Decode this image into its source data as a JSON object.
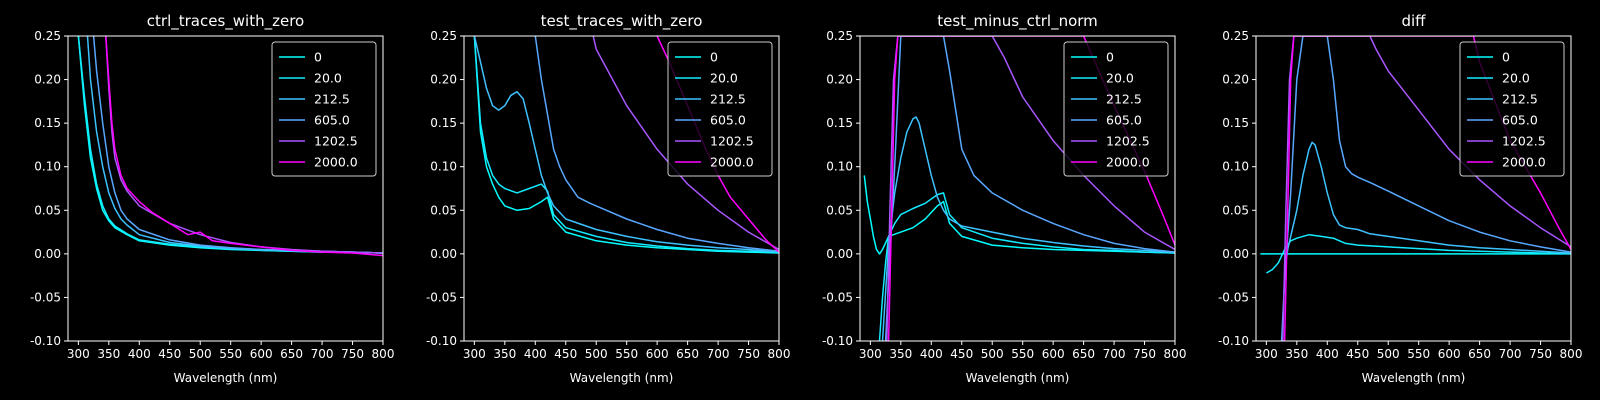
{
  "figure": {
    "background": "#000000",
    "foreground": "#ffffff"
  },
  "series_colors": [
    "#00ffff",
    "#14ebff",
    "#3dc2ff",
    "#58a7ff",
    "#a956ff",
    "#ff00ff"
  ],
  "chart_data": [
    {
      "type": "line",
      "title": "ctrl_traces_with_zero",
      "xlabel": "Wavelength (nm)",
      "ylabel": "",
      "xlim": [
        283,
        800
      ],
      "ylim": [
        -0.1,
        0.25
      ],
      "xticks": [
        300,
        350,
        400,
        450,
        500,
        550,
        600,
        650,
        700,
        750,
        800
      ],
      "yticks": [
        -0.1,
        -0.05,
        0.0,
        0.05,
        0.1,
        0.15,
        0.2,
        0.25
      ],
      "legend": "top-right",
      "series": [
        {
          "name": "0",
          "x": [
            300,
            310,
            320,
            330,
            340,
            350,
            360,
            380,
            400,
            450,
            500,
            550,
            600,
            650,
            700,
            750,
            800
          ],
          "y": [
            0.25,
            0.17,
            0.11,
            0.075,
            0.05,
            0.038,
            0.03,
            0.022,
            0.015,
            0.01,
            0.007,
            0.005,
            0.004,
            0.003,
            0.002,
            0.002,
            0.001
          ]
        },
        {
          "name": "20.0",
          "x": [
            300,
            310,
            320,
            330,
            340,
            350,
            360,
            380,
            400,
            450,
            500,
            550,
            600,
            650,
            700,
            750,
            800
          ],
          "y": [
            0.25,
            0.18,
            0.12,
            0.08,
            0.055,
            0.04,
            0.032,
            0.023,
            0.016,
            0.011,
            0.008,
            0.006,
            0.004,
            0.003,
            0.002,
            0.002,
            0.001
          ]
        },
        {
          "name": "212.5",
          "x": [
            315,
            320,
            330,
            340,
            350,
            360,
            370,
            380,
            400,
            450,
            500,
            550,
            600,
            650,
            700,
            750,
            800
          ],
          "y": [
            0.25,
            0.2,
            0.14,
            0.1,
            0.07,
            0.052,
            0.04,
            0.033,
            0.022,
            0.013,
            0.009,
            0.006,
            0.005,
            0.004,
            0.003,
            0.002,
            0.001
          ]
        },
        {
          "name": "605.0",
          "x": [
            325,
            330,
            340,
            350,
            360,
            370,
            380,
            400,
            450,
            500,
            550,
            600,
            650,
            700,
            750,
            800
          ],
          "y": [
            0.25,
            0.21,
            0.15,
            0.1,
            0.07,
            0.05,
            0.04,
            0.028,
            0.016,
            0.01,
            0.007,
            0.005,
            0.004,
            0.003,
            0.002,
            0.001
          ]
        },
        {
          "name": "1202.5",
          "x": [
            345,
            350,
            355,
            360,
            370,
            380,
            400,
            450,
            500,
            550,
            600,
            650,
            700,
            750,
            800
          ],
          "y": [
            0.25,
            0.19,
            0.14,
            0.11,
            0.085,
            0.072,
            0.055,
            0.035,
            0.022,
            0.013,
            0.008,
            0.005,
            0.003,
            0.002,
            0.001
          ]
        },
        {
          "name": "2000.0",
          "x": [
            345,
            350,
            355,
            360,
            370,
            380,
            400,
            420,
            450,
            480,
            500,
            520,
            550,
            600,
            650,
            700,
            750,
            800
          ],
          "y": [
            0.25,
            0.2,
            0.15,
            0.12,
            0.09,
            0.075,
            0.06,
            0.048,
            0.035,
            0.022,
            0.025,
            0.015,
            0.012,
            0.008,
            0.004,
            0.002,
            0.001,
            -0.002
          ]
        }
      ]
    },
    {
      "type": "line",
      "title": "test_traces_with_zero",
      "xlabel": "Wavelength (nm)",
      "ylabel": "",
      "xlim": [
        283,
        800
      ],
      "ylim": [
        -0.1,
        0.25
      ],
      "xticks": [
        300,
        350,
        400,
        450,
        500,
        550,
        600,
        650,
        700,
        750,
        800
      ],
      "yticks": [
        -0.1,
        -0.05,
        0.0,
        0.05,
        0.1,
        0.15,
        0.2,
        0.25
      ],
      "legend": "top-right",
      "series": [
        {
          "name": "0",
          "x": [
            300,
            310,
            320,
            330,
            340,
            350,
            370,
            390,
            410,
            420,
            430,
            450,
            500,
            550,
            600,
            650,
            700,
            750,
            800
          ],
          "y": [
            0.25,
            0.14,
            0.1,
            0.08,
            0.065,
            0.055,
            0.05,
            0.052,
            0.06,
            0.065,
            0.04,
            0.025,
            0.015,
            0.01,
            0.007,
            0.005,
            0.003,
            0.002,
            0.001
          ]
        },
        {
          "name": "20.0",
          "x": [
            300,
            310,
            320,
            330,
            340,
            350,
            370,
            390,
            410,
            420,
            430,
            450,
            500,
            550,
            600,
            650,
            700,
            750,
            800
          ],
          "y": [
            0.25,
            0.15,
            0.11,
            0.09,
            0.08,
            0.075,
            0.07,
            0.075,
            0.08,
            0.072,
            0.045,
            0.03,
            0.02,
            0.013,
            0.009,
            0.006,
            0.004,
            0.003,
            0.002
          ]
        },
        {
          "name": "212.5",
          "x": [
            300,
            310,
            320,
            330,
            340,
            350,
            360,
            370,
            380,
            390,
            400,
            410,
            420,
            430,
            450,
            500,
            550,
            600,
            650,
            700,
            750,
            800
          ],
          "y": [
            0.25,
            0.22,
            0.19,
            0.17,
            0.165,
            0.17,
            0.182,
            0.186,
            0.178,
            0.15,
            0.12,
            0.09,
            0.07,
            0.055,
            0.04,
            0.028,
            0.02,
            0.014,
            0.01,
            0.007,
            0.005,
            0.002
          ]
        },
        {
          "name": "605.0",
          "x": [
            400,
            410,
            420,
            430,
            440,
            450,
            470,
            490,
            500,
            550,
            600,
            650,
            700,
            750,
            800
          ],
          "y": [
            0.25,
            0.2,
            0.16,
            0.12,
            0.1,
            0.085,
            0.065,
            0.058,
            0.055,
            0.04,
            0.028,
            0.018,
            0.012,
            0.007,
            0.003
          ]
        },
        {
          "name": "1202.5",
          "x": [
            495,
            500,
            550,
            600,
            650,
            700,
            750,
            800
          ],
          "y": [
            0.25,
            0.235,
            0.17,
            0.12,
            0.08,
            0.05,
            0.025,
            0.005
          ]
        },
        {
          "name": "2000.0",
          "x": [
            600,
            620,
            650,
            680,
            700,
            720,
            750,
            780,
            800
          ],
          "y": [
            0.25,
            0.22,
            0.17,
            0.12,
            0.09,
            0.065,
            0.04,
            0.015,
            0.002
          ]
        }
      ]
    },
    {
      "type": "line",
      "title": "test_minus_ctrl_norm",
      "xlabel": "Wavelength (nm)",
      "ylabel": "",
      "xlim": [
        283,
        800
      ],
      "ylim": [
        -0.1,
        0.25
      ],
      "xticks": [
        300,
        350,
        400,
        450,
        500,
        550,
        600,
        650,
        700,
        750,
        800
      ],
      "yticks": [
        -0.1,
        -0.05,
        0.0,
        0.05,
        0.1,
        0.15,
        0.2,
        0.25
      ],
      "legend": "top-right",
      "series": [
        {
          "name": "0",
          "x": [
            290,
            295,
            300,
            305,
            310,
            315,
            320,
            330,
            350,
            370,
            390,
            410,
            420,
            430,
            450,
            500,
            550,
            600,
            650,
            700,
            750,
            800
          ],
          "y": [
            0.09,
            0.06,
            0.04,
            0.02,
            0.005,
            0.0,
            0.005,
            0.02,
            0.025,
            0.03,
            0.04,
            0.055,
            0.06,
            0.035,
            0.02,
            0.01,
            0.007,
            0.005,
            0.004,
            0.003,
            0.002,
            0.001
          ]
        },
        {
          "name": "20.0",
          "x": [
            315,
            320,
            325,
            330,
            340,
            350,
            370,
            390,
            410,
            420,
            430,
            450,
            500,
            550,
            600,
            650,
            700,
            750,
            800
          ],
          "y": [
            -0.1,
            -0.05,
            -0.01,
            0.02,
            0.035,
            0.045,
            0.052,
            0.058,
            0.068,
            0.07,
            0.045,
            0.03,
            0.018,
            0.012,
            0.008,
            0.005,
            0.004,
            0.002,
            0.001
          ]
        },
        {
          "name": "212.5",
          "x": [
            320,
            330,
            340,
            350,
            360,
            370,
            375,
            380,
            390,
            400,
            410,
            420,
            430,
            450,
            500,
            550,
            600,
            650,
            700,
            750,
            800
          ],
          "y": [
            -0.1,
            0.01,
            0.07,
            0.11,
            0.14,
            0.155,
            0.157,
            0.15,
            0.12,
            0.09,
            0.065,
            0.05,
            0.04,
            0.032,
            0.025,
            0.018,
            0.013,
            0.009,
            0.006,
            0.004,
            0.002
          ]
        },
        {
          "name": "605.0",
          "x": [
            325,
            330,
            340,
            350,
            360,
            370,
            380,
            390,
            400,
            410,
            420,
            430,
            450,
            470,
            500,
            550,
            600,
            650,
            700,
            750,
            800
          ],
          "y": [
            -0.1,
            -0.03,
            0.1,
            0.25,
            0.25,
            0.25,
            0.25,
            0.25,
            0.25,
            0.25,
            0.25,
            0.21,
            0.12,
            0.09,
            0.07,
            0.05,
            0.035,
            0.022,
            0.012,
            0.006,
            0.002
          ]
        },
        {
          "name": "1202.5",
          "x": [
            327,
            332,
            338,
            345,
            400,
            500,
            520,
            550,
            600,
            650,
            700,
            750,
            800
          ],
          "y": [
            -0.1,
            0.05,
            0.2,
            0.25,
            0.25,
            0.25,
            0.225,
            0.18,
            0.13,
            0.09,
            0.055,
            0.025,
            0.005
          ]
        },
        {
          "name": "2000.0",
          "x": [
            330,
            335,
            340,
            345,
            600,
            650,
            700,
            720,
            750,
            780,
            800
          ],
          "y": [
            -0.1,
            0.05,
            0.2,
            0.25,
            0.25,
            0.25,
            0.17,
            0.14,
            0.095,
            0.045,
            0.01
          ]
        }
      ]
    },
    {
      "type": "line",
      "title": "diff",
      "xlabel": "Wavelength (nm)",
      "ylabel": "",
      "xlim": [
        283,
        800
      ],
      "ylim": [
        -0.1,
        0.25
      ],
      "xticks": [
        300,
        350,
        400,
        450,
        500,
        550,
        600,
        650,
        700,
        750,
        800
      ],
      "yticks": [
        -0.1,
        -0.05,
        0.0,
        0.05,
        0.1,
        0.15,
        0.2,
        0.25
      ],
      "legend": "top-right",
      "series": [
        {
          "name": "0",
          "x": [
            290,
            800
          ],
          "y": [
            0.0,
            0.0
          ]
        },
        {
          "name": "20.0",
          "x": [
            300,
            310,
            320,
            330,
            340,
            350,
            370,
            390,
            410,
            420,
            430,
            450,
            500,
            550,
            600,
            650,
            700,
            750,
            800
          ],
          "y": [
            -0.022,
            -0.018,
            -0.01,
            0.005,
            0.015,
            0.018,
            0.022,
            0.02,
            0.018,
            0.015,
            0.012,
            0.01,
            0.008,
            0.006,
            0.004,
            0.003,
            0.002,
            0.001,
            0.0
          ]
        },
        {
          "name": "212.5",
          "x": [
            330,
            335,
            340,
            350,
            360,
            370,
            375,
            380,
            390,
            400,
            410,
            420,
            430,
            450,
            470,
            500,
            550,
            600,
            650,
            700,
            750,
            800
          ],
          "y": [
            -0.02,
            0.005,
            0.02,
            0.05,
            0.09,
            0.12,
            0.128,
            0.125,
            0.1,
            0.07,
            0.045,
            0.033,
            0.03,
            0.028,
            0.023,
            0.02,
            0.015,
            0.01,
            0.007,
            0.005,
            0.003,
            0.001
          ]
        },
        {
          "name": "605.0",
          "x": [
            325,
            330,
            340,
            350,
            360,
            370,
            380,
            390,
            400,
            410,
            420,
            430,
            440,
            450,
            470,
            500,
            550,
            600,
            650,
            700,
            750,
            800
          ],
          "y": [
            -0.1,
            -0.03,
            0.07,
            0.2,
            0.25,
            0.25,
            0.25,
            0.25,
            0.25,
            0.2,
            0.13,
            0.1,
            0.092,
            0.088,
            0.082,
            0.072,
            0.055,
            0.038,
            0.025,
            0.015,
            0.008,
            0.002
          ]
        },
        {
          "name": "1202.5",
          "x": [
            327,
            332,
            338,
            345,
            400,
            470,
            480,
            500,
            550,
            600,
            650,
            700,
            750,
            800
          ],
          "y": [
            -0.1,
            0.05,
            0.2,
            0.25,
            0.25,
            0.25,
            0.235,
            0.21,
            0.165,
            0.12,
            0.085,
            0.055,
            0.03,
            0.008
          ]
        },
        {
          "name": "2000.0",
          "x": [
            330,
            335,
            340,
            345,
            600,
            640,
            650,
            700,
            750,
            780,
            800
          ],
          "y": [
            -0.1,
            0.05,
            0.2,
            0.25,
            0.25,
            0.25,
            0.22,
            0.13,
            0.07,
            0.03,
            0.005
          ]
        }
      ]
    }
  ]
}
